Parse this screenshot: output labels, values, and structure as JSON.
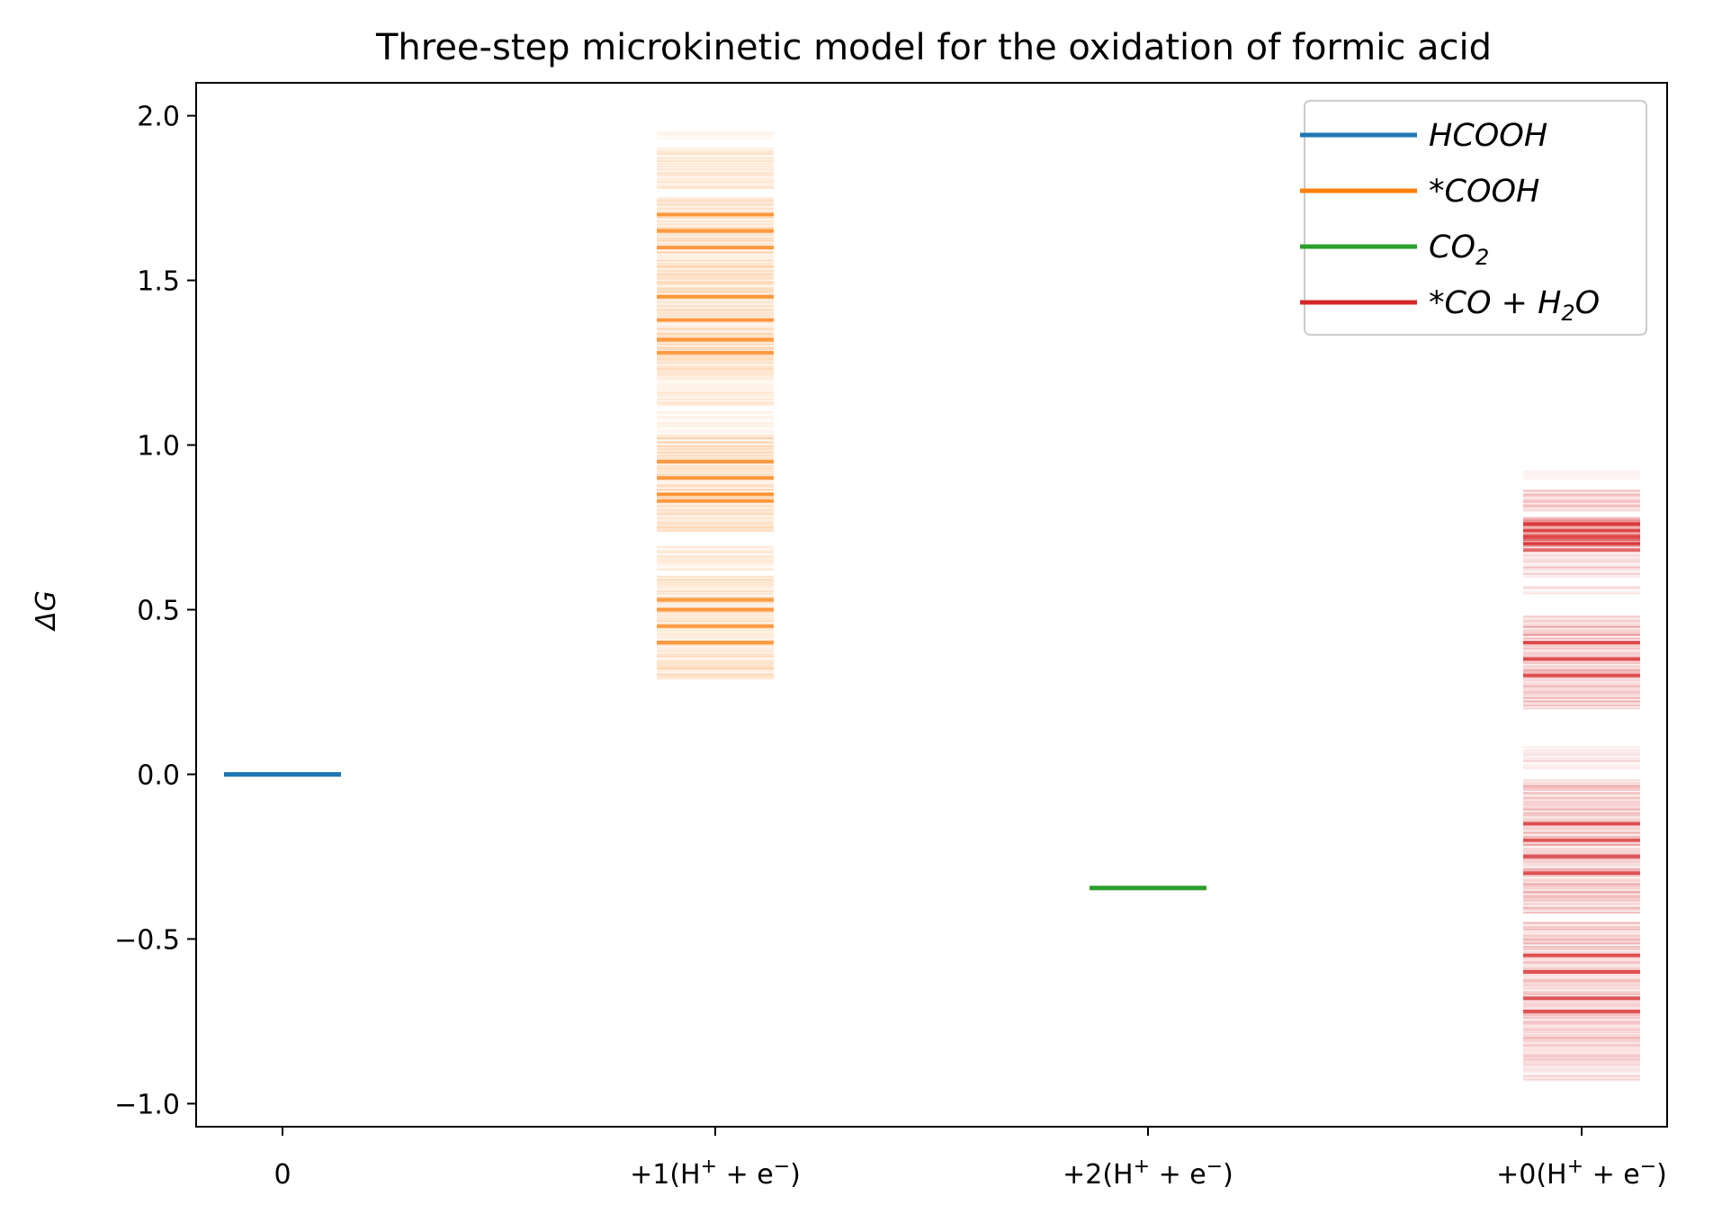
{
  "chart_data": {
    "type": "line",
    "title": "Three-step microkinetic model for the oxidation of formic acid",
    "xlabel": "",
    "ylabel": "ΔG",
    "ylim": [
      -1.07,
      2.1
    ],
    "yticks": [
      "2.0",
      "1.5",
      "1.0",
      "0.5",
      "0.0",
      "−0.5",
      "−1.0"
    ],
    "ytick_values": [
      2.0,
      1.5,
      1.0,
      0.5,
      0.0,
      -0.5,
      -1.0
    ],
    "categories": [
      {
        "base": "0",
        "sup": ""
      },
      {
        "base": "+1(H",
        "sup": "+",
        "mid": " + e",
        "sup2": "−",
        "tail": ")"
      },
      {
        "base": "+2(H",
        "sup": "+",
        "mid": " + e",
        "sup2": "−",
        "tail": ")"
      },
      {
        "base": "+0(H",
        "sup": "+",
        "mid": " + e",
        "sup2": "−",
        "tail": ")"
      }
    ],
    "series": [
      {
        "name": "HCOOH",
        "legend": {
          "t1": "HCOOH",
          "sub": "",
          "t2": "",
          "sub2": "",
          "t3": ""
        },
        "color": "#1f77b4",
        "category_index": 0,
        "mode": "single",
        "value": 0.0
      },
      {
        "name": "*COOH",
        "legend": {
          "t1": "*COOH",
          "sub": "",
          "t2": "",
          "sub2": "",
          "t3": ""
        },
        "color": "#ff7f0e",
        "category_index": 1,
        "mode": "ensemble",
        "value_range": [
          0.29,
          1.95
        ],
        "bands": [
          [
            0.29,
            0.33,
            0.18
          ],
          [
            0.33,
            0.6,
            0.16
          ],
          [
            0.62,
            0.69,
            0.12
          ],
          [
            0.74,
            1.03,
            0.2
          ],
          [
            1.04,
            1.1,
            0.08
          ],
          [
            1.12,
            1.22,
            0.12
          ],
          [
            1.22,
            1.75,
            0.2
          ],
          [
            1.78,
            1.9,
            0.14
          ],
          [
            1.93,
            1.95,
            0.06
          ]
        ],
        "dense_values": [
          0.4,
          0.45,
          0.5,
          0.53,
          0.83,
          0.85,
          0.9,
          0.95,
          1.28,
          1.32,
          1.38,
          1.45,
          1.6,
          1.65,
          1.7
        ]
      },
      {
        "name": "CO2",
        "legend": {
          "t1": "CO",
          "sub": "2",
          "t2": "",
          "sub2": "",
          "t3": ""
        },
        "color": "#2ca02c",
        "category_index": 2,
        "mode": "single",
        "value": -0.345
      },
      {
        "name": "*CO + H2O",
        "legend": {
          "t1": "*CO + H",
          "sub": "2",
          "t2": "O",
          "sub2": "",
          "t3": ""
        },
        "color": "#d62728",
        "category_index": 3,
        "mode": "ensemble",
        "value_range": [
          -0.93,
          0.92
        ],
        "bands": [
          [
            -0.93,
            -0.88,
            0.14
          ],
          [
            -0.88,
            -0.45,
            0.2
          ],
          [
            -0.42,
            -0.02,
            0.22
          ],
          [
            0.02,
            0.08,
            0.1
          ],
          [
            0.2,
            0.48,
            0.22
          ],
          [
            0.55,
            0.57,
            0.1
          ],
          [
            0.6,
            0.68,
            0.16
          ],
          [
            0.68,
            0.78,
            0.55
          ],
          [
            0.8,
            0.86,
            0.2
          ],
          [
            0.9,
            0.92,
            0.06
          ]
        ],
        "dense_values": [
          -0.72,
          -0.68,
          -0.6,
          -0.55,
          -0.3,
          -0.25,
          -0.2,
          -0.15,
          0.3,
          0.35,
          0.4,
          0.7,
          0.72,
          0.74,
          0.76
        ]
      }
    ],
    "legend_position": "upper-right",
    "grid": false
  }
}
